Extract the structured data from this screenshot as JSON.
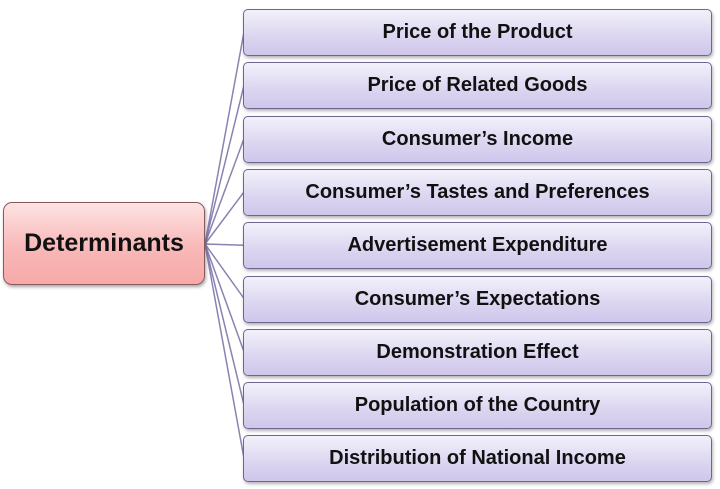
{
  "root": {
    "label": "Determinants"
  },
  "items": [
    {
      "label": "Price of the Product"
    },
    {
      "label": "Price of Related Goods"
    },
    {
      "label": "Consumer’s Income"
    },
    {
      "label": "Consumer’s Tastes and Preferences"
    },
    {
      "label": "Advertisement Expenditure"
    },
    {
      "label": "Consumer’s Expectations"
    },
    {
      "label": "Demonstration Effect"
    },
    {
      "label": "Population of the Country"
    },
    {
      "label": "Distribution of National Income"
    }
  ],
  "colors": {
    "root_fill": "#f9b8b8",
    "item_fill": "#ddd7f1",
    "connector": "#8a82b0"
  }
}
